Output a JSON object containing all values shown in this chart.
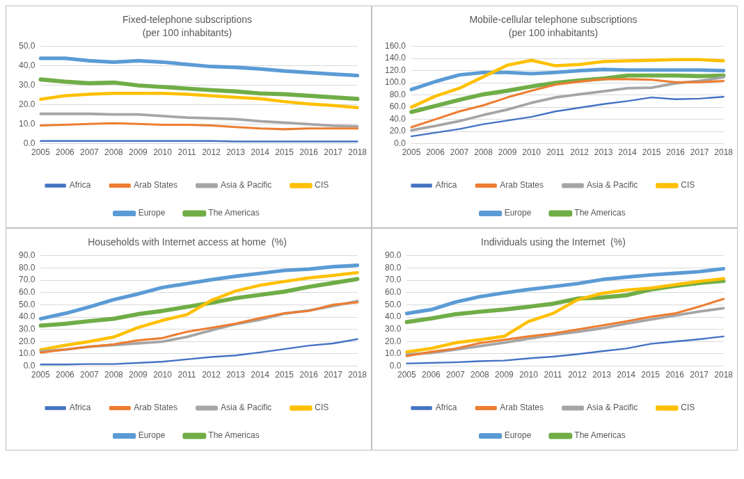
{
  "chart_data": [
    {
      "type": "line",
      "title": "Fixed-telephone subscriptions",
      "subtitle": "(per 100 inhabitants)",
      "categories": [
        "2005",
        "2006",
        "2007",
        "2008",
        "2009",
        "2010",
        "2011",
        "2012",
        "2013",
        "2014",
        "2015",
        "2016",
        "2017",
        "2018"
      ],
      "ylim": [
        0,
        50
      ],
      "yticks": [
        {
          "value": 0,
          "label": "0.0"
        },
        {
          "value": 10,
          "label": "10.0"
        },
        {
          "value": 20,
          "label": "20.0"
        },
        {
          "value": 30,
          "label": "30.0"
        },
        {
          "value": 40,
          "label": "40.0"
        },
        {
          "value": 50,
          "label": "50.0"
        }
      ],
      "grid": "y",
      "legend": "bottom",
      "marker": "none",
      "series": [
        {
          "name": "Africa",
          "color": "#4472c4",
          "values": [
            1.4,
            1.4,
            1.4,
            1.4,
            1.4,
            1.4,
            1.4,
            1.4,
            1.1,
            1.1,
            1.1,
            1.1,
            1.1,
            1.1
          ]
        },
        {
          "name": "Arab States",
          "color": "#ed7d31",
          "values": [
            9.3,
            9.7,
            10.1,
            10.5,
            10.1,
            9.7,
            9.7,
            9.3,
            8.5,
            7.8,
            7.4,
            7.8,
            7.8,
            7.8
          ]
        },
        {
          "name": "Asia & Pacific",
          "color": "#a5a5a5",
          "values": [
            15.3,
            15.3,
            15.3,
            15.0,
            15.0,
            14.2,
            13.4,
            13.0,
            12.6,
            11.5,
            10.8,
            10.0,
            9.2,
            8.9
          ]
        },
        {
          "name": "CIS",
          "color": "#ffc000",
          "values": [
            22.8,
            24.6,
            25.4,
            25.8,
            25.8,
            25.8,
            25.4,
            24.6,
            23.8,
            23.1,
            21.6,
            20.4,
            19.6,
            18.5
          ]
        },
        {
          "name": "Europe",
          "color": "#5b9bd5",
          "values": [
            43.8,
            43.8,
            42.6,
            41.9,
            42.6,
            41.9,
            40.7,
            39.6,
            39.2,
            38.4,
            37.3,
            36.5,
            35.7,
            35.0
          ]
        },
        {
          "name": "The Americas",
          "color": "#70ad47",
          "values": [
            33.0,
            31.8,
            31.0,
            31.4,
            29.9,
            29.1,
            28.3,
            27.5,
            26.8,
            25.8,
            25.4,
            24.6,
            23.8,
            23.0
          ]
        }
      ]
    },
    {
      "type": "line",
      "title": "Mobile-cellular telephone subscriptions",
      "subtitle": "(per 100 inhabitants)",
      "categories": [
        "2005",
        "2006",
        "2007",
        "2008",
        "2009",
        "2010",
        "2011",
        "2012",
        "2013",
        "2014",
        "2015",
        "2016",
        "2017",
        "2018"
      ],
      "ylim": [
        0,
        160
      ],
      "yticks": [
        {
          "value": 0,
          "label": "0.0"
        },
        {
          "value": 20,
          "label": "20.0"
        },
        {
          "value": 40,
          "label": "40.0"
        },
        {
          "value": 60,
          "label": "60.0"
        },
        {
          "value": 80,
          "label": "80.0"
        },
        {
          "value": 100,
          "label": "100.0"
        },
        {
          "value": 120,
          "label": "120.0"
        },
        {
          "value": 140,
          "label": "140.0"
        },
        {
          "value": 160,
          "label": "160.0"
        }
      ],
      "grid": "y",
      "legend": "bottom",
      "marker": "none",
      "series": [
        {
          "name": "Africa",
          "color": "#4472c4",
          "values": [
            12,
            18,
            24,
            32,
            38,
            44,
            53,
            59,
            65,
            70,
            76,
            73,
            74,
            77
          ]
        },
        {
          "name": "Arab States",
          "color": "#ed7d31",
          "values": [
            27,
            40,
            53,
            63,
            76,
            87,
            97,
            102,
            106,
            106,
            105,
            101,
            101,
            103
          ]
        },
        {
          "name": "Asia & Pacific",
          "color": "#a5a5a5",
          "values": [
            22,
            29,
            37,
            47,
            56,
            67,
            76,
            81,
            86,
            91,
            92,
            99,
            103,
            109
          ]
        },
        {
          "name": "CIS",
          "color": "#ffc000",
          "values": [
            60,
            78,
            91,
            110,
            129,
            137,
            128,
            130,
            135,
            136,
            137,
            138,
            138,
            136
          ]
        },
        {
          "name": "Europe",
          "color": "#5b9bd5",
          "values": [
            89,
            102,
            113,
            117,
            117,
            115,
            117,
            120,
            122,
            121,
            121,
            121,
            121,
            120
          ]
        },
        {
          "name": "The Americas",
          "color": "#70ad47",
          "values": [
            52,
            62,
            72,
            81,
            87,
            94,
            100,
            104,
            107,
            112,
            112,
            112,
            111,
            112
          ]
        }
      ]
    },
    {
      "type": "line",
      "title": "Households with Internet access at home  (%)",
      "categories": [
        "2005",
        "2006",
        "2007",
        "2008",
        "2009",
        "2010",
        "2011",
        "2012",
        "2013",
        "2014",
        "2015",
        "2016",
        "2017",
        "2018"
      ],
      "ylim": [
        0,
        90
      ],
      "yticks": [
        {
          "value": 0,
          "label": "0.0"
        },
        {
          "value": 10,
          "label": "10.0"
        },
        {
          "value": 20,
          "label": "20.0"
        },
        {
          "value": 30,
          "label": "30.0"
        },
        {
          "value": 40,
          "label": "40.0"
        },
        {
          "value": 50,
          "label": "50.0"
        },
        {
          "value": 60,
          "label": "60.0"
        },
        {
          "value": 70,
          "label": "70.0"
        },
        {
          "value": 80,
          "label": "80.0"
        },
        {
          "value": 90,
          "label": "90.0"
        }
      ],
      "grid": "y",
      "legend": "bottom",
      "marker": "none",
      "series": [
        {
          "name": "Africa",
          "color": "#4472c4",
          "values": [
            1.3,
            1.3,
            1.7,
            1.7,
            2.6,
            3.6,
            5.5,
            7.4,
            8.7,
            11.2,
            13.9,
            16.7,
            18.5,
            22.0
          ]
        },
        {
          "name": "Arab States",
          "color": "#ed7d31",
          "values": [
            11.0,
            13.5,
            15.8,
            17.8,
            21.0,
            22.8,
            28.0,
            31.2,
            34.6,
            39.2,
            43.1,
            45.0,
            50.0,
            52.0
          ]
        },
        {
          "name": "Asia & Pacific",
          "color": "#a5a5a5",
          "values": [
            12.0,
            13.5,
            15.8,
            17.2,
            18.5,
            20.0,
            23.8,
            29.2,
            34.2,
            37.8,
            42.8,
            45.3,
            49.0,
            53.0
          ]
        },
        {
          "name": "CIS",
          "color": "#ffc000",
          "values": [
            13.3,
            16.9,
            20.0,
            23.7,
            31.4,
            37.3,
            41.9,
            53.5,
            61.2,
            65.9,
            69.0,
            71.9,
            73.9,
            76.2
          ]
        },
        {
          "name": "Europe",
          "color": "#5b9bd5",
          "values": [
            38.6,
            42.9,
            48.2,
            54.2,
            58.8,
            64.1,
            67.2,
            70.4,
            73.2,
            75.6,
            78.0,
            79.0,
            81.0,
            82.2
          ]
        },
        {
          "name": "The Americas",
          "color": "#70ad47",
          "values": [
            33.0,
            34.5,
            36.7,
            38.6,
            42.4,
            45.0,
            48.3,
            51.6,
            55.4,
            58.1,
            60.7,
            64.6,
            67.8,
            71.0
          ]
        }
      ]
    },
    {
      "type": "line",
      "title": "Individuals using the Internet  (%)",
      "categories": [
        "2005",
        "2006",
        "2007",
        "2008",
        "2009",
        "2010",
        "2011",
        "2012",
        "2013",
        "2014",
        "2015",
        "2016",
        "2017",
        "2018"
      ],
      "ylim": [
        0,
        90
      ],
      "yticks": [
        {
          "value": 0,
          "label": "0.0"
        },
        {
          "value": 10,
          "label": "10.0"
        },
        {
          "value": 20,
          "label": "20.0"
        },
        {
          "value": 30,
          "label": "30.0"
        },
        {
          "value": 40,
          "label": "40.0"
        },
        {
          "value": 50,
          "label": "50.0"
        },
        {
          "value": 60,
          "label": "60.0"
        },
        {
          "value": 70,
          "label": "70.0"
        },
        {
          "value": 80,
          "label": "80.0"
        },
        {
          "value": 90,
          "label": "90.0"
        }
      ],
      "grid": "y",
      "legend": "bottom",
      "marker": "none",
      "series": [
        {
          "name": "Africa",
          "color": "#4472c4",
          "values": [
            2.1,
            2.6,
            3.1,
            4.0,
            4.5,
            6.3,
            7.7,
            9.7,
            12.1,
            14.3,
            18.1,
            20.0,
            21.9,
            24.2
          ]
        },
        {
          "name": "Arab States",
          "color": "#ed7d31",
          "values": [
            8.1,
            11.6,
            14.2,
            18.8,
            21.5,
            24.2,
            26.6,
            29.8,
            33.1,
            36.5,
            40.2,
            42.9,
            48.5,
            54.7
          ]
        },
        {
          "name": "Asia & Pacific",
          "color": "#a5a5a5",
          "values": [
            9.4,
            10.8,
            13.4,
            16.3,
            19.1,
            22.4,
            25.3,
            27.9,
            30.8,
            34.5,
            37.9,
            41.2,
            44.5,
            47.2
          ]
        },
        {
          "name": "CIS",
          "color": "#ffc000",
          "values": [
            11.5,
            14.4,
            19.0,
            21.5,
            24.3,
            36.4,
            42.9,
            54.0,
            59.3,
            62.0,
            63.5,
            66.4,
            69.0,
            71.3
          ]
        },
        {
          "name": "Europe",
          "color": "#5b9bd5",
          "values": [
            42.9,
            46.0,
            52.2,
            56.6,
            59.7,
            62.5,
            64.8,
            67.2,
            70.5,
            72.5,
            74.3,
            75.6,
            77.0,
            79.4
          ]
        },
        {
          "name": "The Americas",
          "color": "#70ad47",
          "values": [
            35.9,
            38.8,
            42.3,
            44.3,
            46.1,
            48.4,
            50.8,
            55.0,
            55.9,
            57.7,
            62.3,
            65.3,
            67.8,
            69.5
          ]
        }
      ]
    }
  ]
}
